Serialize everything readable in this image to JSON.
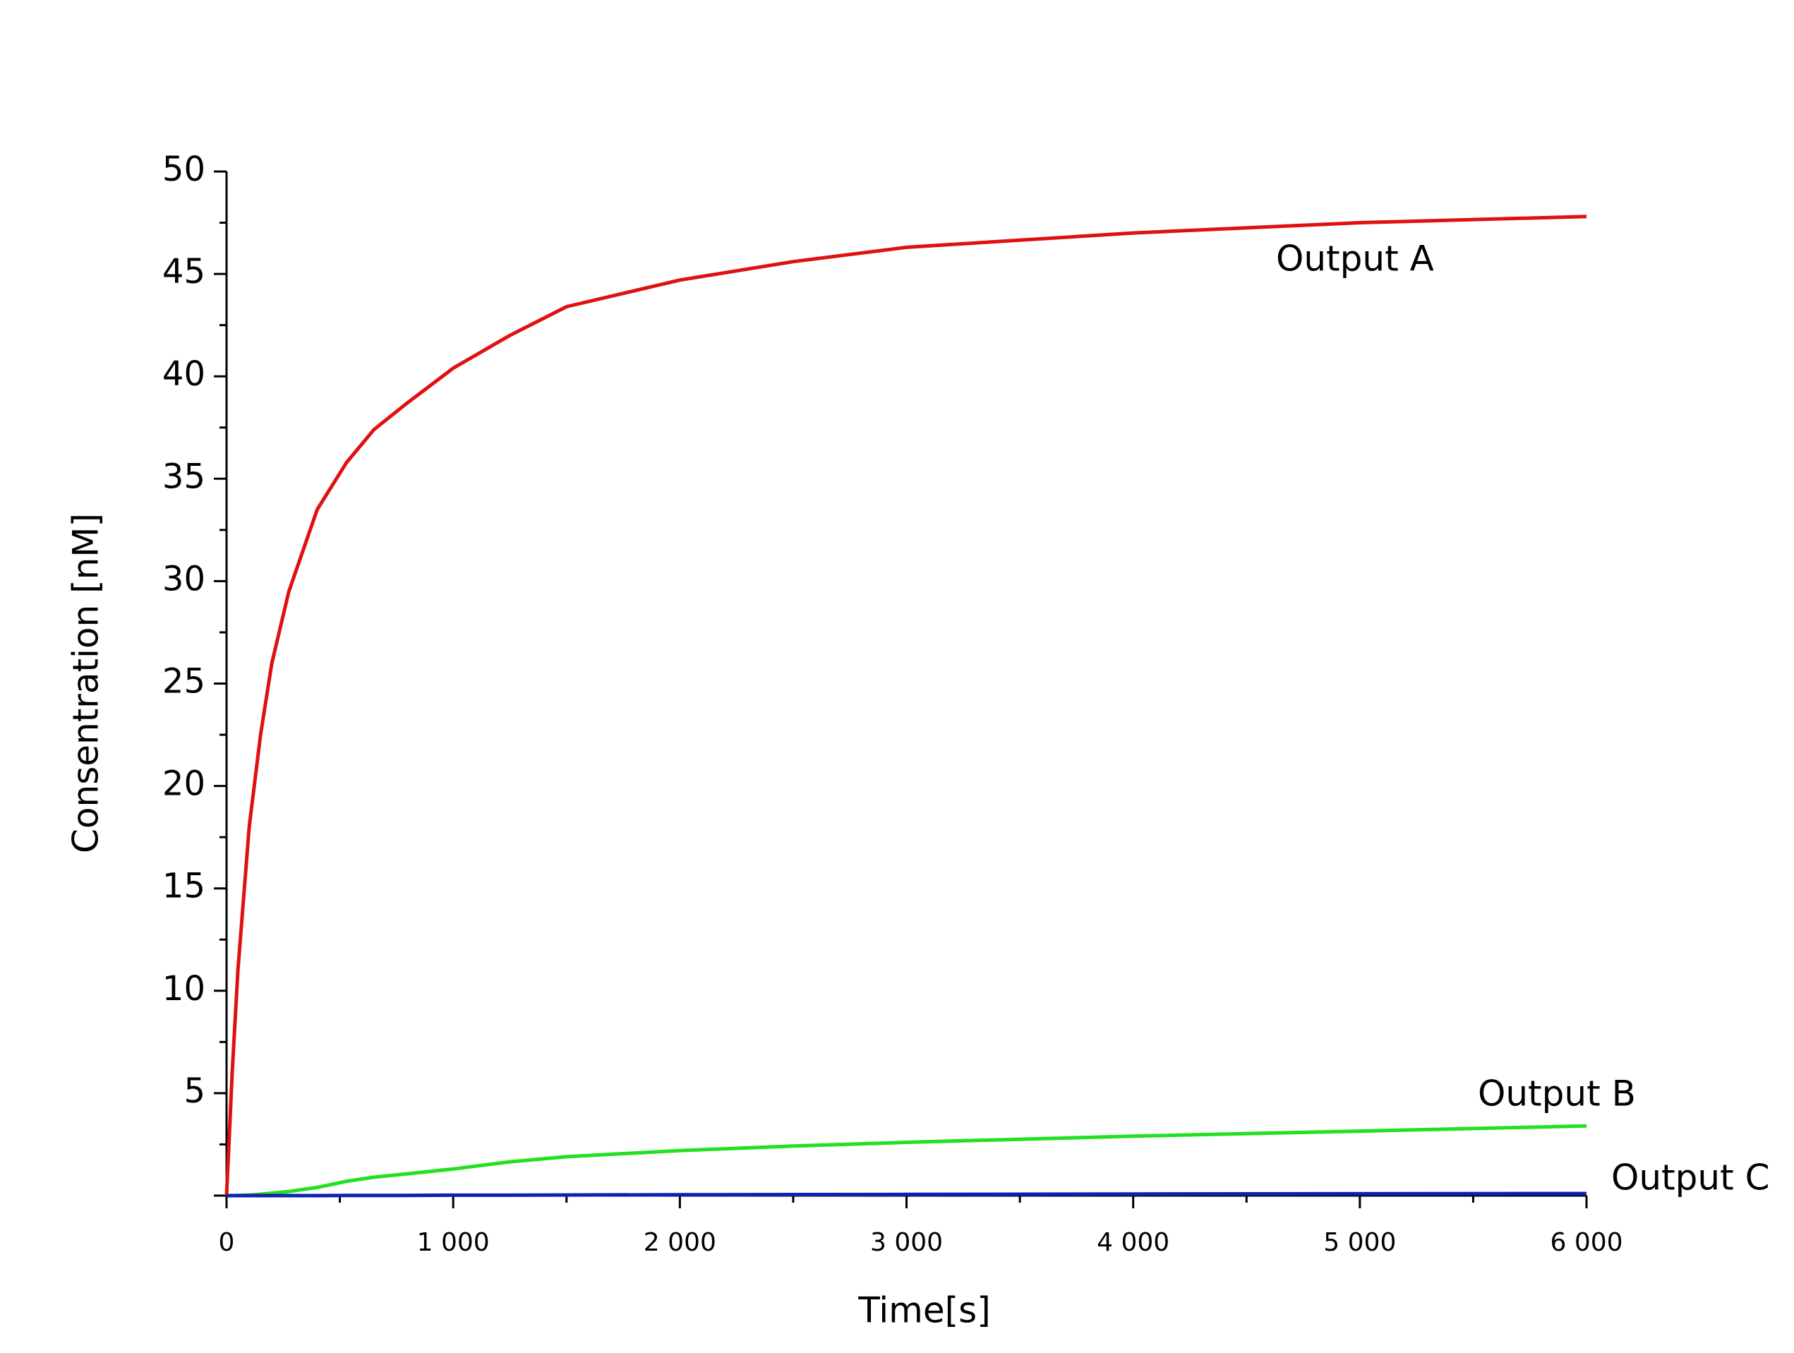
{
  "chart_data": {
    "type": "line",
    "xlabel": "Time[s]",
    "ylabel": "Consentration [nM]",
    "xlim": [
      0,
      6000
    ],
    "ylim": [
      0,
      50
    ],
    "xticks": [
      0,
      {
        "value": 1000,
        "label": "1 000"
      },
      {
        "value": 2000,
        "label": "2 000"
      },
      {
        "value": 3000,
        "label": "3 000"
      },
      {
        "value": 4000,
        "label": "4 000"
      },
      {
        "value": 5000,
        "label": "5 000"
      },
      {
        "value": 6000,
        "label": "6 000"
      }
    ],
    "xminorticks": [
      500,
      1500,
      2500,
      3500,
      4500,
      5500
    ],
    "yticks": [
      5,
      10,
      15,
      20,
      25,
      30,
      35,
      40,
      45,
      50
    ],
    "yminorticks": [
      2.5,
      7.5,
      12.5,
      17.5,
      22.5,
      27.5,
      32.5,
      37.5,
      42.5,
      47.5
    ],
    "x": [
      0,
      25,
      50,
      100,
      150,
      200,
      275,
      400,
      530,
      650,
      786,
      1000,
      1250,
      1500,
      2000,
      2500,
      3000,
      4000,
      5000,
      6000
    ],
    "series": [
      {
        "name": "Output A",
        "color": "#e01010",
        "values": [
          0,
          6,
          11,
          18,
          22.5,
          26,
          29.5,
          33.5,
          35.8,
          37.4,
          38.6,
          40.4,
          42,
          43.4,
          44.7,
          45.6,
          46.3,
          47.0,
          47.5,
          47.8
        ]
      },
      {
        "name": "Output B",
        "color": "#22e022",
        "values": [
          0,
          0,
          0.01,
          0.03,
          0.07,
          0.12,
          0.2,
          0.4,
          0.7,
          0.9,
          1.05,
          1.3,
          1.65,
          1.9,
          2.2,
          2.42,
          2.6,
          2.9,
          3.15,
          3.4
        ]
      },
      {
        "name": "Output C",
        "color": "#1020b0",
        "values": [
          0,
          0,
          0,
          0,
          0,
          0,
          0,
          0,
          0.01,
          0.01,
          0.01,
          0.02,
          0.02,
          0.03,
          0.04,
          0.05,
          0.06,
          0.08,
          0.09,
          0.1
        ]
      }
    ]
  }
}
